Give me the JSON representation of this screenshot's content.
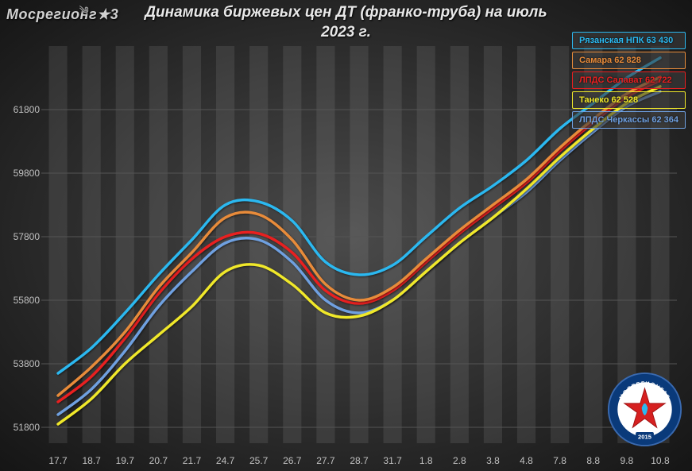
{
  "logo_top": "Мосрегионг★3",
  "title": "Динамика  биржевых  цен ДТ  (франко-труба)  на  июль 2023 г.",
  "chart": {
    "type": "line",
    "background": "#353535",
    "grid_color": "#555555",
    "bar_bg_color": "rgba(200,200,200,0.12)",
    "ylim": [
      51300,
      63800
    ],
    "ytick_step": 2000,
    "yticks": [
      51800,
      53800,
      55800,
      57800,
      59800,
      61800
    ],
    "x_labels": [
      "17.7",
      "18.7",
      "19.7",
      "20.7",
      "21.7",
      "24.7",
      "25.7",
      "26.7",
      "27.7",
      "28.7",
      "31.7",
      "1.8",
      "2.8",
      "3.8",
      "4.8",
      "7.8",
      "8.8",
      "9.8",
      "10.8"
    ],
    "line_width": 3.5,
    "label_fontsize": 12,
    "title_fontsize": 19,
    "series": [
      {
        "name": "Рязанская НПК",
        "label": "Рязанская НПК 63 430",
        "color": "#2bb8f0",
        "values": [
          53500,
          54300,
          55400,
          56600,
          57700,
          58800,
          58900,
          58300,
          57000,
          56600,
          56900,
          57800,
          58700,
          59400,
          60200,
          61200,
          62000,
          62800,
          63430
        ]
      },
      {
        "name": "Самара",
        "label": "Самара  62 828",
        "color": "#e88b3a",
        "values": [
          52800,
          53700,
          54800,
          56200,
          57300,
          58400,
          58500,
          57700,
          56300,
          55800,
          56200,
          57100,
          58000,
          58800,
          59600,
          60600,
          61500,
          62300,
          62828
        ]
      },
      {
        "name": "ЛПДС Салават",
        "label": "ЛПДС Салават 62 722",
        "color": "#e82020",
        "values": [
          52600,
          53400,
          54600,
          56000,
          57100,
          57800,
          57900,
          57300,
          56100,
          55700,
          56100,
          57000,
          57900,
          58700,
          59500,
          60500,
          61400,
          62200,
          62722
        ]
      },
      {
        "name": "Танеко",
        "label": "Танеко 62 528",
        "color": "#f0e82a",
        "values": [
          51900,
          52700,
          53800,
          54700,
          55600,
          56700,
          56900,
          56300,
          55400,
          55300,
          55800,
          56700,
          57600,
          58400,
          59300,
          60300,
          61200,
          62000,
          62528
        ]
      },
      {
        "name": "ЛПДС Черкассы",
        "label": "ЛПДС Черкассы 62 364",
        "color": "#6fa0e0",
        "values": [
          52200,
          53000,
          54200,
          55600,
          56700,
          57600,
          57700,
          57000,
          55800,
          55400,
          55800,
          56700,
          57600,
          58400,
          59200,
          60200,
          61100,
          61900,
          62364
        ]
      }
    ]
  },
  "badge": {
    "text_top": "МОСРЕГИОНГАЗ",
    "year": "2015",
    "outer_color": "#0a3a7a",
    "inner_color": "#ffffff",
    "star_color": "#d62020"
  }
}
